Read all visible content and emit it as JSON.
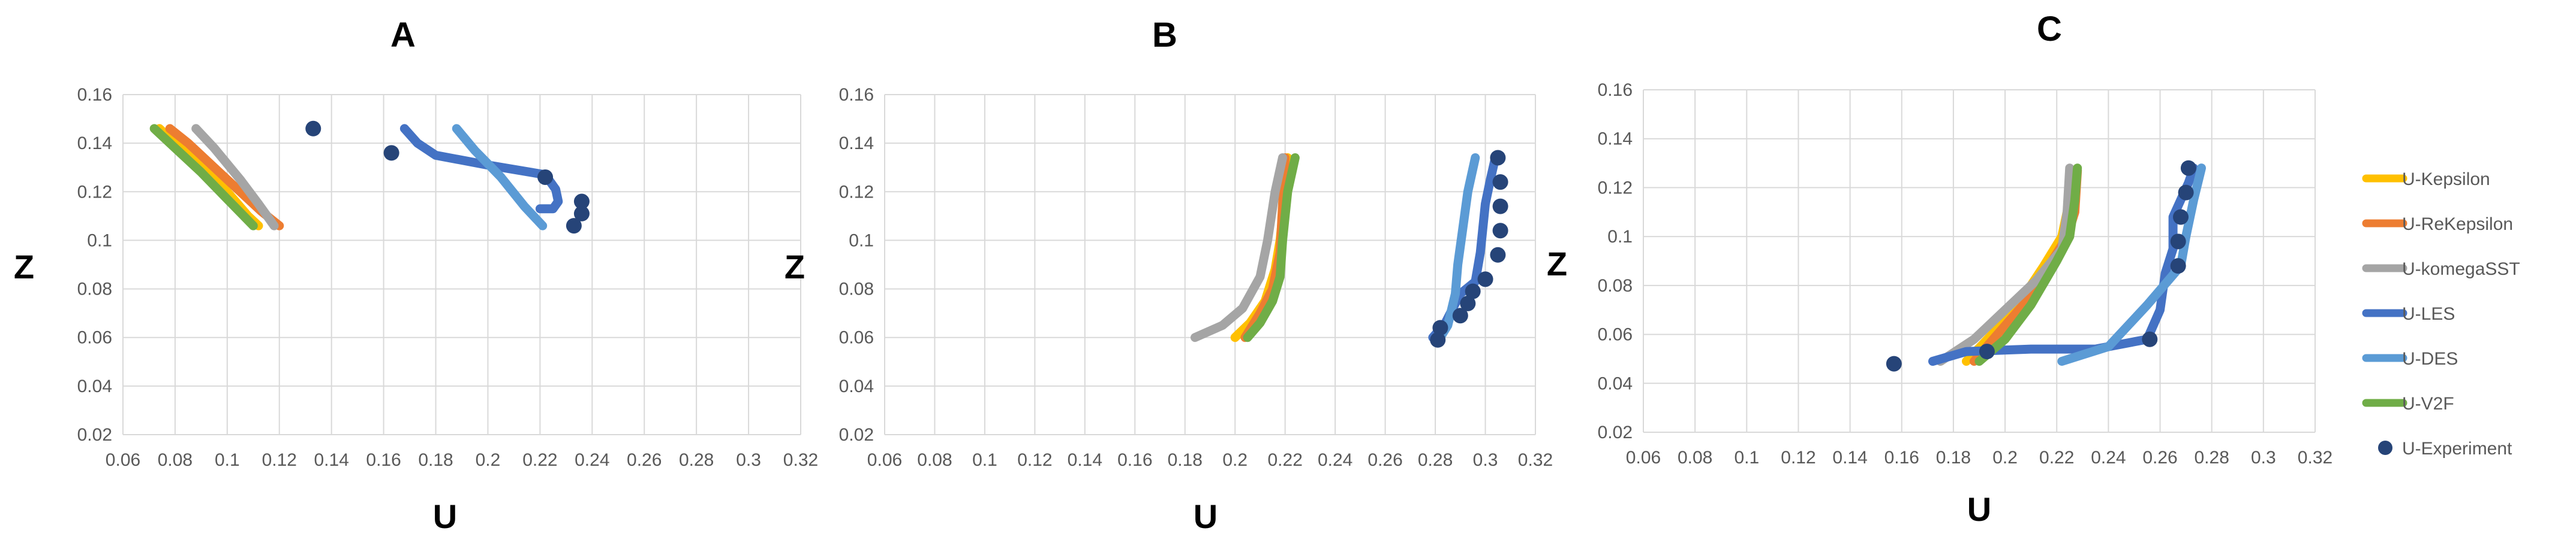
{
  "chart_data": [
    {
      "type": "line",
      "title": "A",
      "xlabel": "U",
      "ylabel": "Z",
      "xlim": [
        0.06,
        0.32
      ],
      "ylim": [
        0.02,
        0.16
      ],
      "xticks": [
        "0.06",
        "0.08",
        "0.1",
        "0.12",
        "0.14",
        "0.16",
        "0.18",
        "0.2",
        "0.22",
        "0.24",
        "0.26",
        "0.28",
        "0.3",
        "0.32"
      ],
      "yticks": [
        "0.02",
        "0.04",
        "0.06",
        "0.08",
        "0.1",
        "0.12",
        "0.14",
        "0.16"
      ],
      "grid": true,
      "series": [
        {
          "name": "U-Kepsilon",
          "x": [
            0.074,
            0.08,
            0.09,
            0.1,
            0.108,
            0.112
          ],
          "y": [
            0.146,
            0.14,
            0.13,
            0.12,
            0.11,
            0.106
          ]
        },
        {
          "name": "U-ReKepsilon",
          "x": [
            0.078,
            0.085,
            0.095,
            0.105,
            0.113,
            0.12
          ],
          "y": [
            0.146,
            0.14,
            0.13,
            0.12,
            0.112,
            0.106
          ]
        },
        {
          "name": "U-komegaSST",
          "x": [
            0.088,
            0.095,
            0.105,
            0.112,
            0.118
          ],
          "y": [
            0.146,
            0.138,
            0.125,
            0.115,
            0.106
          ]
        },
        {
          "name": "U-LES",
          "x": [
            0.168,
            0.173,
            0.18,
            0.2,
            0.222,
            0.226,
            0.227,
            0.225,
            0.22
          ],
          "y": [
            0.146,
            0.14,
            0.135,
            0.131,
            0.127,
            0.121,
            0.116,
            0.113,
            0.113
          ]
        },
        {
          "name": "U-DES",
          "x": [
            0.188,
            0.195,
            0.205,
            0.214,
            0.221
          ],
          "y": [
            0.146,
            0.137,
            0.126,
            0.114,
            0.106
          ]
        },
        {
          "name": "U-V2F",
          "x": [
            0.072,
            0.08,
            0.09,
            0.1,
            0.11
          ],
          "y": [
            0.146,
            0.138,
            0.128,
            0.117,
            0.106
          ]
        },
        {
          "name": "U-Experiment",
          "x": [
            0.133,
            0.163,
            0.222,
            0.236,
            0.236,
            0.233
          ],
          "y": [
            0.146,
            0.136,
            0.126,
            0.116,
            0.111,
            0.106
          ]
        }
      ]
    },
    {
      "type": "line",
      "title": "B",
      "xlabel": "U",
      "ylabel": "Z",
      "xlim": [
        0.06,
        0.32
      ],
      "ylim": [
        0.02,
        0.16
      ],
      "xticks": [
        "0.06",
        "0.08",
        "0.1",
        "0.12",
        "0.14",
        "0.16",
        "0.18",
        "0.2",
        "0.22",
        "0.24",
        "0.26",
        "0.28",
        "0.3",
        "0.32"
      ],
      "yticks": [
        "0.02",
        "0.04",
        "0.06",
        "0.08",
        "0.1",
        "0.12",
        "0.14",
        "0.16"
      ],
      "grid": true,
      "series": [
        {
          "name": "U-Kepsilon",
          "x": [
            0.2,
            0.206,
            0.212,
            0.216,
            0.218,
            0.22,
            0.221
          ],
          "y": [
            0.06,
            0.066,
            0.075,
            0.088,
            0.1,
            0.12,
            0.134
          ]
        },
        {
          "name": "U-ReKepsilon",
          "x": [
            0.204,
            0.21,
            0.215,
            0.218,
            0.219,
            0.22
          ],
          "y": [
            0.06,
            0.07,
            0.08,
            0.095,
            0.115,
            0.134
          ]
        },
        {
          "name": "U-komegaSST",
          "x": [
            0.184,
            0.195,
            0.203,
            0.21,
            0.213,
            0.216,
            0.219
          ],
          "y": [
            0.06,
            0.065,
            0.072,
            0.085,
            0.1,
            0.12,
            0.134
          ]
        },
        {
          "name": "U-LES",
          "x": [
            0.279,
            0.284,
            0.29,
            0.296,
            0.298,
            0.3,
            0.302,
            0.304
          ],
          "y": [
            0.06,
            0.066,
            0.078,
            0.083,
            0.095,
            0.115,
            0.125,
            0.134
          ]
        },
        {
          "name": "U-DES",
          "x": [
            0.282,
            0.285,
            0.288,
            0.289,
            0.291,
            0.293,
            0.296
          ],
          "y": [
            0.06,
            0.065,
            0.078,
            0.09,
            0.105,
            0.12,
            0.134
          ]
        },
        {
          "name": "U-V2F",
          "x": [
            0.205,
            0.21,
            0.215,
            0.218,
            0.219,
            0.221,
            0.224
          ],
          "y": [
            0.06,
            0.066,
            0.075,
            0.085,
            0.1,
            0.12,
            0.134
          ]
        },
        {
          "name": "U-Experiment",
          "x": [
            0.305,
            0.306,
            0.306,
            0.306,
            0.305,
            0.3,
            0.295,
            0.293,
            0.29,
            0.282,
            0.281
          ],
          "y": [
            0.134,
            0.124,
            0.114,
            0.104,
            0.094,
            0.084,
            0.079,
            0.074,
            0.069,
            0.064,
            0.059
          ]
        }
      ]
    },
    {
      "type": "line",
      "title": "C",
      "xlabel": "U",
      "ylabel": "Z",
      "xlim": [
        0.06,
        0.32
      ],
      "ylim": [
        0.02,
        0.16
      ],
      "xticks": [
        "0.06",
        "0.08",
        "0.1",
        "0.12",
        "0.14",
        "0.16",
        "0.18",
        "0.2",
        "0.22",
        "0.24",
        "0.26",
        "0.28",
        "0.3",
        "0.32"
      ],
      "yticks": [
        "0.02",
        "0.04",
        "0.06",
        "0.08",
        "0.1",
        "0.12",
        "0.14",
        "0.16"
      ],
      "grid": true,
      "series": [
        {
          "name": "U-Kepsilon",
          "x": [
            0.185,
            0.195,
            0.205,
            0.215,
            0.222,
            0.225,
            0.226
          ],
          "y": [
            0.049,
            0.06,
            0.072,
            0.088,
            0.1,
            0.115,
            0.127
          ]
        },
        {
          "name": "U-ReKepsilon",
          "x": [
            0.188,
            0.197,
            0.207,
            0.217,
            0.224,
            0.227,
            0.228
          ],
          "y": [
            0.049,
            0.06,
            0.072,
            0.088,
            0.1,
            0.11,
            0.127
          ]
        },
        {
          "name": "U-komegaSST",
          "x": [
            0.175,
            0.188,
            0.2,
            0.212,
            0.222,
            0.224,
            0.225
          ],
          "y": [
            0.049,
            0.058,
            0.07,
            0.082,
            0.095,
            0.11,
            0.128
          ]
        },
        {
          "name": "U-LES",
          "x": [
            0.172,
            0.185,
            0.21,
            0.235,
            0.255,
            0.26,
            0.262,
            0.265,
            0.265,
            0.268,
            0.271,
            0.273
          ],
          "y": [
            0.049,
            0.053,
            0.054,
            0.054,
            0.058,
            0.07,
            0.085,
            0.095,
            0.108,
            0.115,
            0.122,
            0.128
          ]
        },
        {
          "name": "U-DES",
          "x": [
            0.222,
            0.24,
            0.255,
            0.268,
            0.27,
            0.273,
            0.276
          ],
          "y": [
            0.049,
            0.055,
            0.072,
            0.088,
            0.1,
            0.115,
            0.128
          ]
        },
        {
          "name": "U-V2F",
          "x": [
            0.19,
            0.2,
            0.21,
            0.22,
            0.225,
            0.227,
            0.228
          ],
          "y": [
            0.049,
            0.058,
            0.072,
            0.09,
            0.1,
            0.115,
            0.128
          ]
        },
        {
          "name": "U-Experiment",
          "x": [
            0.271,
            0.27,
            0.268,
            0.267,
            0.267,
            0.256,
            0.193,
            0.157
          ],
          "y": [
            0.128,
            0.118,
            0.108,
            0.098,
            0.088,
            0.058,
            0.053,
            0.048
          ]
        }
      ]
    }
  ],
  "legend": [
    {
      "label": "U-Kepsilon",
      "color": "#FFC000",
      "marker": "line"
    },
    {
      "label": "U-ReKepsilon",
      "color": "#ED7D31",
      "marker": "line"
    },
    {
      "label": "U-komegaSST",
      "color": "#A5A5A5",
      "marker": "line"
    },
    {
      "label": "U-LES",
      "color": "#4472C4",
      "marker": "line"
    },
    {
      "label": "U-DES",
      "color": "#5B9BD5",
      "marker": "line"
    },
    {
      "label": "U-V2F",
      "color": "#70AD47",
      "marker": "line"
    },
    {
      "label": "U-Experiment",
      "color": "#264478",
      "marker": "dot"
    }
  ],
  "legend_placement": "right",
  "series_colors": {
    "U-Kepsilon": "#FFC000",
    "U-ReKepsilon": "#ED7D31",
    "U-komegaSST": "#A5A5A5",
    "U-LES": "#4472C4",
    "U-DES": "#5B9BD5",
    "U-V2F": "#70AD47",
    "U-Experiment": "#264478"
  }
}
